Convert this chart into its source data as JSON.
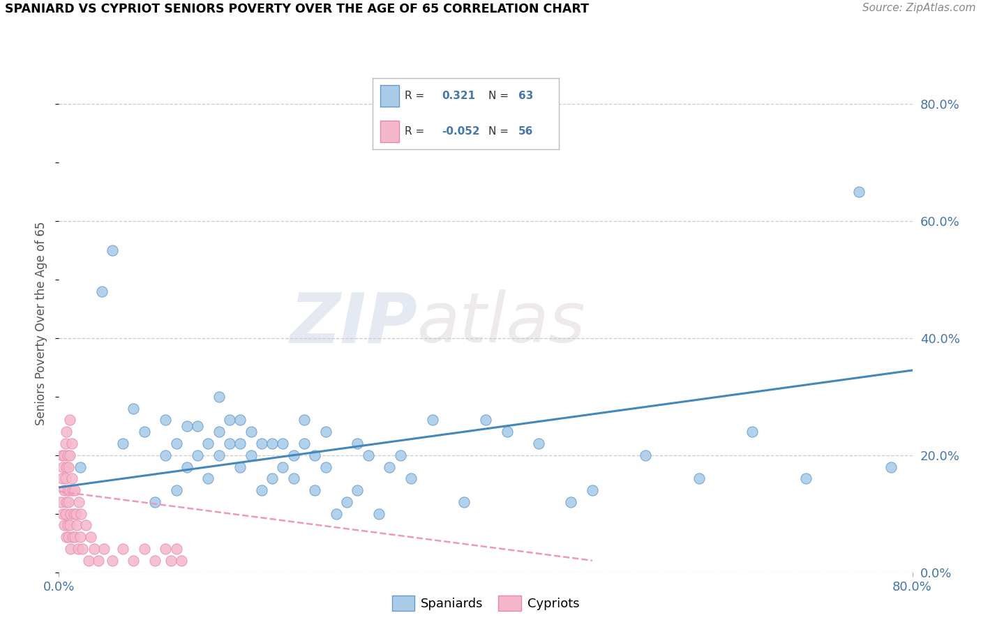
{
  "title": "SPANIARD VS CYPRIOT SENIORS POVERTY OVER THE AGE OF 65 CORRELATION CHART",
  "source": "Source: ZipAtlas.com",
  "ylabel": "Seniors Poverty Over the Age of 65",
  "xmin": 0.0,
  "xmax": 0.8,
  "ymin": 0.0,
  "ymax": 0.85,
  "watermark_zip": "ZIP",
  "watermark_atlas": "atlas",
  "spaniards_R": 0.321,
  "spaniards_N": 63,
  "cypriots_R": -0.052,
  "cypriots_N": 56,
  "spaniard_color": "#aacce8",
  "spaniard_edge": "#6699cc",
  "cypriot_color": "#f5b8cb",
  "cypriot_edge": "#e888a8",
  "spaniard_line_color": "#4488bb",
  "cypriot_line_color": "#ee99bb",
  "grid_color": "#cccccc",
  "background_color": "#ffffff",
  "tick_color": "#4477aa",
  "spaniards_x": [
    0.02,
    0.04,
    0.05,
    0.06,
    0.07,
    0.08,
    0.09,
    0.1,
    0.1,
    0.11,
    0.11,
    0.12,
    0.12,
    0.13,
    0.13,
    0.14,
    0.14,
    0.15,
    0.15,
    0.15,
    0.16,
    0.16,
    0.17,
    0.17,
    0.17,
    0.18,
    0.18,
    0.19,
    0.19,
    0.2,
    0.2,
    0.21,
    0.21,
    0.22,
    0.22,
    0.23,
    0.23,
    0.24,
    0.24,
    0.25,
    0.25,
    0.26,
    0.27,
    0.28,
    0.28,
    0.29,
    0.3,
    0.31,
    0.32,
    0.33,
    0.35,
    0.38,
    0.4,
    0.42,
    0.45,
    0.48,
    0.5,
    0.55,
    0.6,
    0.65,
    0.7,
    0.75,
    0.78
  ],
  "spaniards_y": [
    0.18,
    0.48,
    0.55,
    0.22,
    0.28,
    0.24,
    0.12,
    0.2,
    0.26,
    0.14,
    0.22,
    0.18,
    0.25,
    0.2,
    0.25,
    0.16,
    0.22,
    0.2,
    0.24,
    0.3,
    0.22,
    0.26,
    0.18,
    0.22,
    0.26,
    0.2,
    0.24,
    0.14,
    0.22,
    0.16,
    0.22,
    0.18,
    0.22,
    0.16,
    0.2,
    0.22,
    0.26,
    0.14,
    0.2,
    0.18,
    0.24,
    0.1,
    0.12,
    0.22,
    0.14,
    0.2,
    0.1,
    0.18,
    0.2,
    0.16,
    0.26,
    0.12,
    0.26,
    0.24,
    0.22,
    0.12,
    0.14,
    0.2,
    0.16,
    0.24,
    0.16,
    0.65,
    0.18
  ],
  "cypriots_x": [
    0.002,
    0.003,
    0.003,
    0.004,
    0.004,
    0.005,
    0.005,
    0.005,
    0.006,
    0.006,
    0.006,
    0.007,
    0.007,
    0.007,
    0.007,
    0.008,
    0.008,
    0.008,
    0.009,
    0.009,
    0.009,
    0.01,
    0.01,
    0.01,
    0.01,
    0.011,
    0.011,
    0.012,
    0.012,
    0.013,
    0.013,
    0.014,
    0.015,
    0.015,
    0.016,
    0.017,
    0.018,
    0.019,
    0.02,
    0.021,
    0.022,
    0.025,
    0.028,
    0.03,
    0.033,
    0.037,
    0.042,
    0.05,
    0.06,
    0.07,
    0.08,
    0.09,
    0.1,
    0.105,
    0.11,
    0.115
  ],
  "cypriots_y": [
    0.12,
    0.16,
    0.2,
    0.1,
    0.18,
    0.08,
    0.14,
    0.2,
    0.1,
    0.16,
    0.22,
    0.06,
    0.12,
    0.18,
    0.24,
    0.08,
    0.14,
    0.2,
    0.06,
    0.12,
    0.18,
    0.08,
    0.14,
    0.2,
    0.26,
    0.04,
    0.1,
    0.16,
    0.22,
    0.06,
    0.14,
    0.1,
    0.06,
    0.14,
    0.1,
    0.08,
    0.04,
    0.12,
    0.06,
    0.1,
    0.04,
    0.08,
    0.02,
    0.06,
    0.04,
    0.02,
    0.04,
    0.02,
    0.04,
    0.02,
    0.04,
    0.02,
    0.04,
    0.02,
    0.04,
    0.02
  ],
  "sp_trend_x": [
    0.0,
    0.8
  ],
  "sp_trend_y": [
    0.145,
    0.345
  ],
  "cy_trend_x": [
    0.0,
    0.5
  ],
  "cy_trend_y": [
    0.138,
    0.02
  ],
  "yticks": [
    0.0,
    0.2,
    0.4,
    0.6,
    0.8
  ],
  "ytick_labels": [
    "0.0%",
    "20.0%",
    "40.0%",
    "60.0%",
    "80.0%"
  ]
}
